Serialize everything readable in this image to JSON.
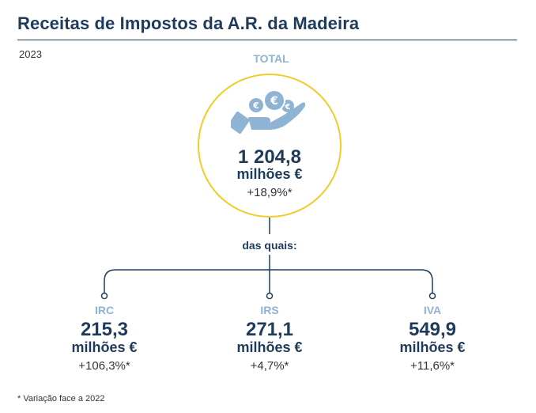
{
  "title": "Receitas de Impostos da A.R. da Madeira",
  "year": "2023",
  "total": {
    "label": "TOTAL",
    "value": "1 204,8",
    "unit": "milhões €",
    "change": "+18,9%*",
    "icon": "hand-holding-euro-coins-icon"
  },
  "connector_label": "das quais:",
  "items": [
    {
      "label": "IRC",
      "value": "215,3",
      "unit": "milhões €",
      "change": "+106,3%*"
    },
    {
      "label": "IRS",
      "value": "271,1",
      "unit": "milhões €",
      "change": "+4,7%*"
    },
    {
      "label": "IVA",
      "value": "549,9",
      "unit": "milhões €",
      "change": "+11,6%*"
    }
  ],
  "footnote": "* Variação face a 2022",
  "colors": {
    "title": "#1f3b5c",
    "accent_label": "#8fb3d3",
    "circle_border": "#f0cc2c",
    "text": "#333333"
  }
}
